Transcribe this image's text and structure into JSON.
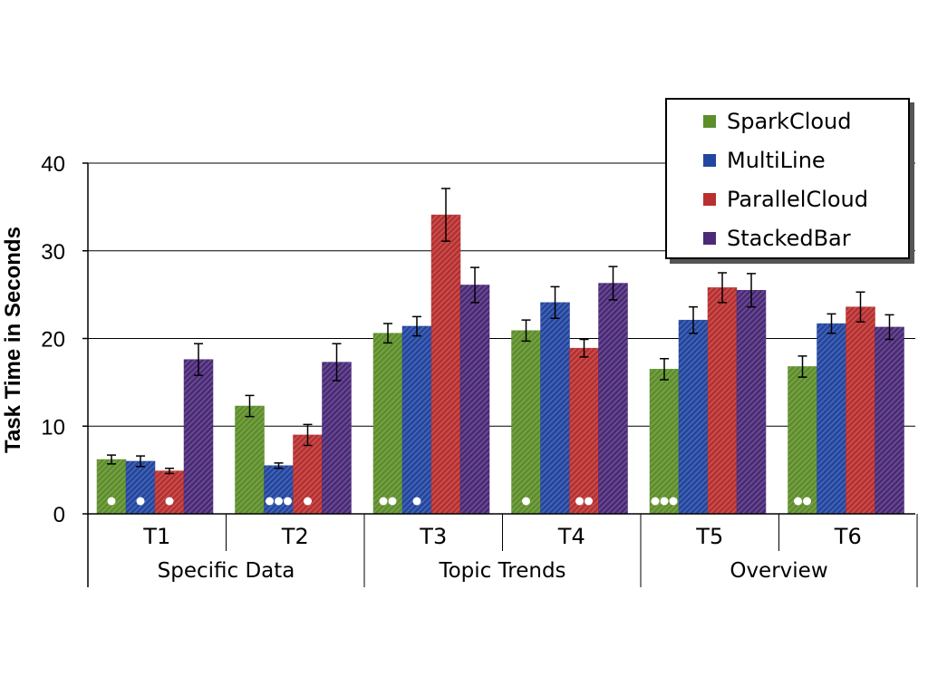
{
  "chart_data": {
    "type": "bar",
    "ylabel": "Task Time in Seconds",
    "ylim": [
      0,
      40
    ],
    "yticks": [
      0,
      10,
      20,
      30,
      40
    ],
    "categories": [
      "T1",
      "T2",
      "T3",
      "T4",
      "T5",
      "T6"
    ],
    "groups": [
      {
        "label": "Specific Data",
        "categories": [
          "T1",
          "T2"
        ]
      },
      {
        "label": "Topic Trends",
        "categories": [
          "T3",
          "T4"
        ]
      },
      {
        "label": "Overview",
        "categories": [
          "T5",
          "T6"
        ]
      }
    ],
    "series": [
      {
        "name": "SparkCloud",
        "color": "#5e8e2a",
        "values": [
          6.2,
          12.3,
          20.6,
          20.9,
          16.5,
          16.8
        ],
        "errors": [
          0.5,
          1.2,
          1.1,
          1.2,
          1.2,
          1.2
        ],
        "dots": [
          1,
          0,
          2,
          1,
          3,
          2
        ]
      },
      {
        "name": "MultiLine",
        "color": "#2346a0",
        "values": [
          6.0,
          5.5,
          21.4,
          24.1,
          22.1,
          21.7
        ],
        "errors": [
          0.6,
          0.3,
          1.1,
          1.8,
          1.5,
          1.1
        ],
        "dots": [
          1,
          3,
          1,
          0,
          0,
          0
        ]
      },
      {
        "name": "ParallelCloud",
        "color": "#b83030",
        "values": [
          4.9,
          9.0,
          34.1,
          18.9,
          25.8,
          23.6
        ],
        "errors": [
          0.3,
          1.2,
          3.0,
          1.0,
          1.7,
          1.7
        ],
        "dots": [
          1,
          1,
          0,
          2,
          0,
          0
        ]
      },
      {
        "name": "StackedBar",
        "color": "#4b2a78",
        "values": [
          17.6,
          17.3,
          26.1,
          26.3,
          25.5,
          21.3
        ],
        "errors": [
          1.8,
          2.1,
          2.0,
          1.9,
          1.9,
          1.4
        ],
        "dots": [
          0,
          0,
          0,
          0,
          0,
          0
        ]
      }
    ],
    "legend_position": "top-right",
    "grid": true
  }
}
